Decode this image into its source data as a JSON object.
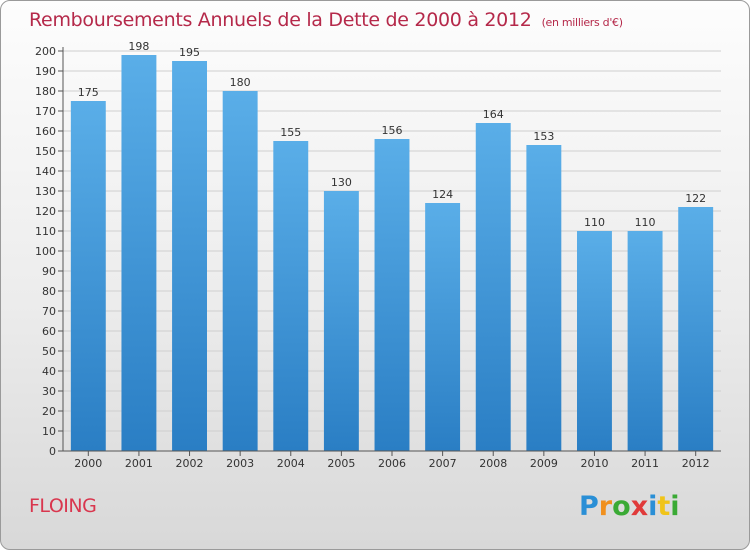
{
  "title": "Remboursements Annuels de la Dette de 2000 à 2012",
  "subtitle": "(en milliers d'€)",
  "location": "FLOING",
  "logo": {
    "letters": [
      {
        "char": "P",
        "color": "#2a8fd6"
      },
      {
        "char": "r",
        "color": "#f0901e"
      },
      {
        "char": "o",
        "color": "#3aaa35"
      },
      {
        "char": "x",
        "color": "#e03a3a"
      },
      {
        "char": "i",
        "color": "#2a8fd6"
      },
      {
        "char": "t",
        "color": "#f0c419"
      },
      {
        "char": "i",
        "color": "#3aaa35"
      }
    ]
  },
  "colors": {
    "bar_light": "#5aaee8",
    "bar_dark": "#2a7ec4",
    "title": "#b5294a",
    "grid": "#cfcfcf"
  },
  "chart_data": {
    "type": "bar",
    "title": "Remboursements Annuels de la Dette de 2000 à 2012",
    "subtitle": "(en milliers d'€)",
    "xlabel": "",
    "ylabel": "",
    "categories": [
      "2000",
      "2001",
      "2002",
      "2003",
      "2004",
      "2005",
      "2006",
      "2007",
      "2008",
      "2009",
      "2010",
      "2011",
      "2012"
    ],
    "values": [
      175,
      198,
      195,
      180,
      155,
      130,
      156,
      124,
      164,
      153,
      110,
      110,
      122
    ],
    "ylim": [
      0,
      200
    ],
    "ytick_step": 10,
    "yticks": [
      "0",
      "10",
      "20",
      "30",
      "40",
      "50",
      "60",
      "70",
      "80",
      "90",
      "100",
      "110",
      "120",
      "130",
      "140",
      "150",
      "160",
      "170",
      "180",
      "190",
      "200"
    ],
    "grid": true,
    "data_labels": true
  }
}
